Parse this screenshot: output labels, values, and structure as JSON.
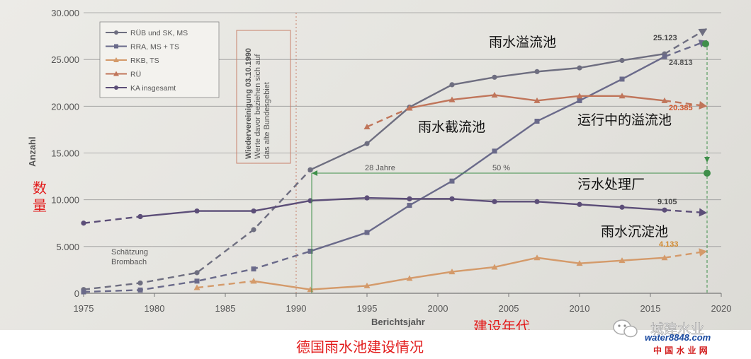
{
  "chart_data": {
    "type": "line",
    "xlabel": "Berichtsjahr",
    "ylabel": "Anzahl",
    "xlim": [
      1975,
      2020
    ],
    "ylim": [
      0,
      30000
    ],
    "x_ticks": [
      "1975",
      "1980",
      "1985",
      "1990",
      "1995",
      "2000",
      "2005",
      "2010",
      "2015",
      "2020"
    ],
    "y_ticks": [
      "0",
      "5.000",
      "10.000",
      "15.000",
      "20.000",
      "25.000",
      "30.000"
    ],
    "legend": [
      "RÜB und SK, MS",
      "RRA, MS + TS",
      "RKB, TS",
      "RÜ",
      "KA insgesamt"
    ],
    "legend_position": "top-left",
    "grid": "horizontal",
    "series": [
      {
        "name": "RÜB und SK, MS",
        "color": "#6e6e80",
        "dashed": [
          [
            1975,
            400
          ],
          [
            1979,
            1100
          ],
          [
            1983,
            2200
          ],
          [
            1987,
            6800
          ],
          [
            1991,
            13200
          ]
        ],
        "solid": [
          [
            1991,
            13200
          ],
          [
            1995,
            16000
          ],
          [
            1998,
            19900
          ],
          [
            2001,
            22300
          ],
          [
            2004,
            23100
          ],
          [
            2007,
            23700
          ],
          [
            2010,
            24100
          ],
          [
            2013,
            24900
          ],
          [
            2016,
            25600
          ]
        ],
        "forecast": [
          [
            2016,
            25600
          ],
          [
            2019,
            28300
          ]
        ]
      },
      {
        "name": "RRA, MS + TS",
        "color": "#6a6a8a",
        "dashed": [
          [
            1975,
            150
          ],
          [
            1979,
            350
          ],
          [
            1983,
            1300
          ],
          [
            1987,
            2600
          ],
          [
            1991,
            4500
          ]
        ],
        "solid": [
          [
            1991,
            4500
          ],
          [
            1995,
            6500
          ],
          [
            1998,
            9400
          ],
          [
            2001,
            12000
          ],
          [
            2004,
            15200
          ],
          [
            2007,
            18400
          ],
          [
            2010,
            20600
          ],
          [
            2013,
            22900
          ],
          [
            2016,
            25300
          ]
        ],
        "forecast": [
          [
            2016,
            25300
          ],
          [
            2019,
            27000
          ]
        ]
      },
      {
        "name": "RKB, TS",
        "color": "#d49a6a",
        "dashed": [
          [
            1983,
            600
          ],
          [
            1987,
            1300
          ]
        ],
        "solid": [
          [
            1987,
            1300
          ],
          [
            1991,
            400
          ],
          [
            1995,
            800
          ],
          [
            1998,
            1600
          ],
          [
            2001,
            2300
          ],
          [
            2004,
            2800
          ],
          [
            2007,
            3800
          ],
          [
            2010,
            3200
          ],
          [
            2013,
            3500
          ],
          [
            2016,
            3800
          ]
        ],
        "forecast": [
          [
            2016,
            3800
          ],
          [
            2019,
            4500
          ]
        ]
      },
      {
        "name": "RÜ",
        "color": "#c0755a",
        "dashed": [
          [
            1995,
            17800
          ],
          [
            1998,
            19800
          ]
        ],
        "solid": [
          [
            1998,
            19800
          ],
          [
            2001,
            20700
          ],
          [
            2004,
            21200
          ],
          [
            2007,
            20600
          ],
          [
            2010,
            21100
          ],
          [
            2013,
            21100
          ],
          [
            2016,
            20600
          ]
        ],
        "forecast": [
          [
            2016,
            20600
          ],
          [
            2019,
            20000
          ]
        ]
      },
      {
        "name": "KA insgesamt",
        "color": "#5c4e78",
        "dashed": [
          [
            1975,
            7500
          ],
          [
            1979,
            8200
          ]
        ],
        "solid": [
          [
            1979,
            8200
          ],
          [
            1983,
            8800
          ],
          [
            1987,
            8800
          ],
          [
            1991,
            9900
          ],
          [
            1995,
            10200
          ],
          [
            1998,
            10100
          ],
          [
            2001,
            10100
          ],
          [
            2004,
            9800
          ],
          [
            2007,
            9800
          ],
          [
            2010,
            9500
          ],
          [
            2013,
            9200
          ],
          [
            2016,
            8900
          ]
        ],
        "forecast": [
          [
            2016,
            8900
          ],
          [
            2019,
            8600
          ]
        ]
      }
    ],
    "value_labels": [
      "25.123",
      "24.813",
      "20.385",
      "9.105",
      "4.133"
    ],
    "annotations": {
      "schaetzung": [
        "Schätzung",
        "Brombach"
      ],
      "wiedervereinigung": [
        "Wiedervereinigung 03.10.1990",
        "Werte davor beziehen sich auf",
        "das alte Bundesgebiet"
      ],
      "jahre": "28 Jahre",
      "prozent": "50 %"
    },
    "cn_labels": {
      "overflow_basin": "雨水溢流池",
      "interception_basin": "雨水截流池",
      "overflow_running": "运行中的溢流池",
      "wastewater_plant": "污水处理厂",
      "sedimentation_basin": "雨水沉淀池",
      "y_axis_cn": [
        "数",
        "量"
      ],
      "x_axis_cn": "建设年代",
      "caption": "德国雨水池建设情况"
    }
  },
  "watermark": {
    "brand": "城建水业",
    "site": "water8848.com",
    "tagline": "中 国 水 业 网"
  },
  "colors": {
    "red": "#e21b1b",
    "green": "#3f8f4a",
    "orange": "#d2552a"
  }
}
